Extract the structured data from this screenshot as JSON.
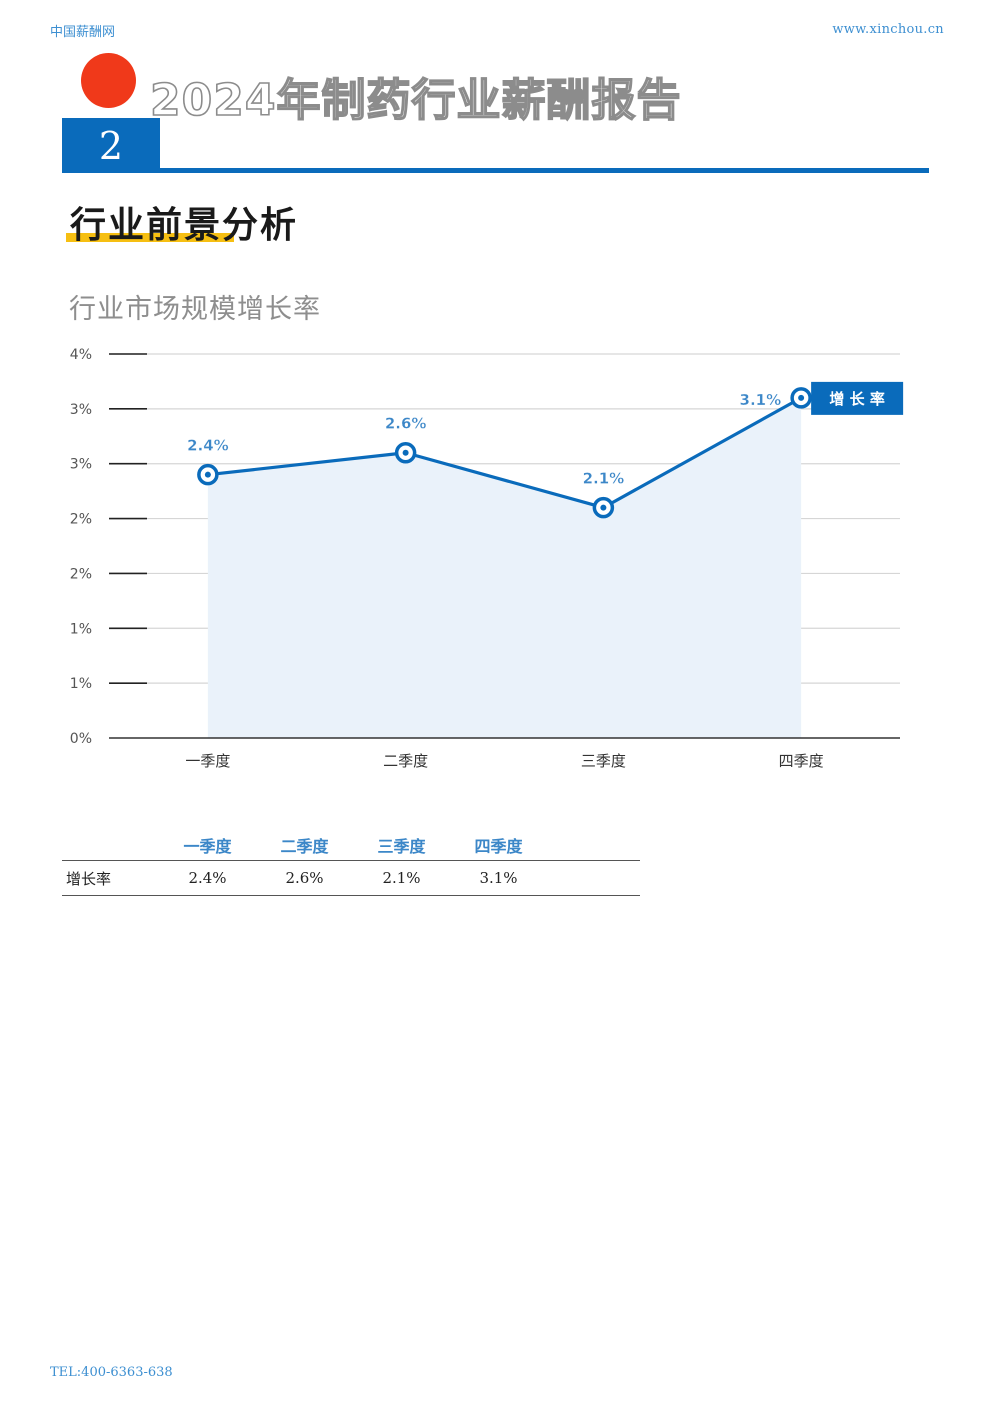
{
  "header": {
    "site_name": "中国薪酬网",
    "site_url": "www.xinchou.cn"
  },
  "report": {
    "title": "2024年制药行业薪酬报告",
    "chapter_number": "2"
  },
  "section": {
    "title": "行业前景分析"
  },
  "chart_title": "行业市场规模增长率",
  "chart_data": {
    "type": "area",
    "title": "行业市场规模增长率",
    "categories": [
      "一季度",
      "二季度",
      "三季度",
      "四季度"
    ],
    "series": [
      {
        "name": "增长率",
        "values": [
          2.4,
          2.6,
          2.1,
          3.1
        ],
        "data_labels": [
          "2.4%",
          "2.6%",
          "2.1%",
          "3.1%"
        ]
      }
    ],
    "ylim": [
      0,
      3.5
    ],
    "yticks": [
      0,
      0.5,
      1,
      1.5,
      2,
      2.5,
      3,
      3.5
    ],
    "ytick_labels": [
      "0%",
      "1%",
      "1%",
      "2%",
      "2%",
      "3%",
      "3%",
      "4%"
    ],
    "legend": "增 长 率",
    "legend_position": "top-right",
    "grid": true,
    "colors": {
      "line": "#0a6bbb",
      "fill": "#eaf2fa",
      "label": "#3c87c8"
    }
  },
  "table": {
    "headers": [
      "",
      "一季度",
      "二季度",
      "三季度",
      "四季度"
    ],
    "rows": [
      {
        "label": "增长率",
        "values": [
          "2.4%",
          "2.6%",
          "2.1%",
          "3.1%"
        ]
      }
    ]
  },
  "footer": {
    "tel": "TEL:400-6363-638"
  }
}
